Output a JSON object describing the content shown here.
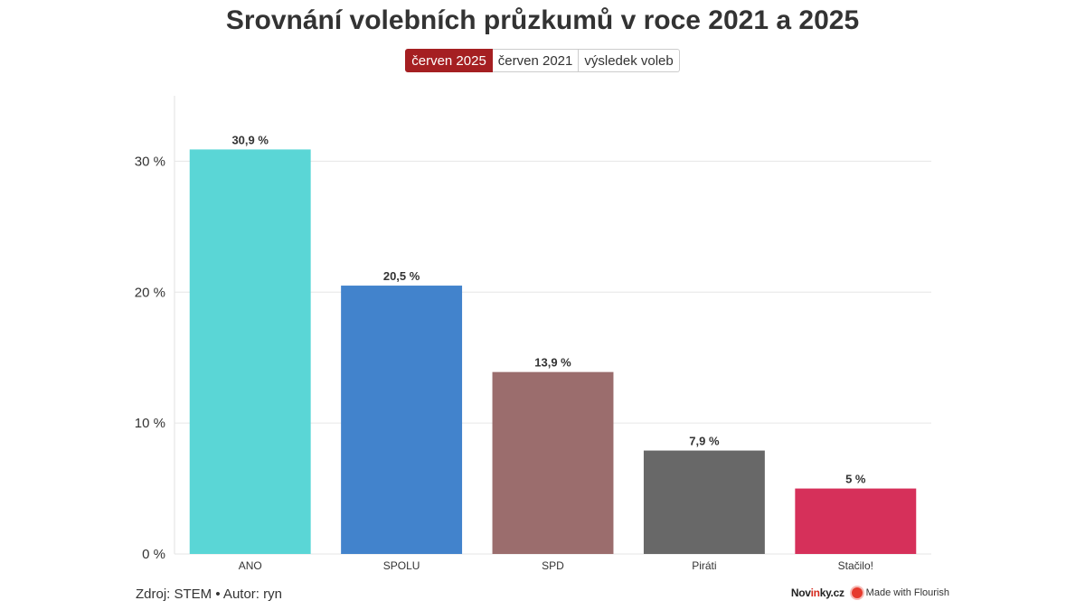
{
  "title": "Srovnání volebních průzkumů v roce 2021 a 2025",
  "tabs": [
    {
      "label": "červen 2025",
      "active": true
    },
    {
      "label": "červen 2021",
      "active": false
    },
    {
      "label": "výsledek voleb",
      "active": false
    }
  ],
  "footer": {
    "source": "Zdroj: STEM • Autor: ryn",
    "brand_prefix": "Nov",
    "brand_accent": "in",
    "brand_suffix": "ky.cz",
    "flourish": "Made with Flourish"
  },
  "chart_data": {
    "type": "bar",
    "categories": [
      "ANO",
      "SPOLU",
      "SPD",
      "Piráti",
      "Stačilo!"
    ],
    "values": [
      30.9,
      20.5,
      13.9,
      7.9,
      5
    ],
    "value_labels": [
      "30,9 %",
      "20,5 %",
      "13,9 %",
      "7,9 %",
      "5 %"
    ],
    "colors": [
      "#5ad6d6",
      "#4283cc",
      "#9b6d6d",
      "#686868",
      "#d6305a"
    ],
    "y_ticks": [
      0,
      10,
      20,
      30
    ],
    "y_tick_labels": [
      "0 %",
      "10 %",
      "20 %",
      "30 %"
    ],
    "ylim": [
      0,
      35
    ],
    "grid": true,
    "xlabel": "",
    "ylabel": ""
  }
}
